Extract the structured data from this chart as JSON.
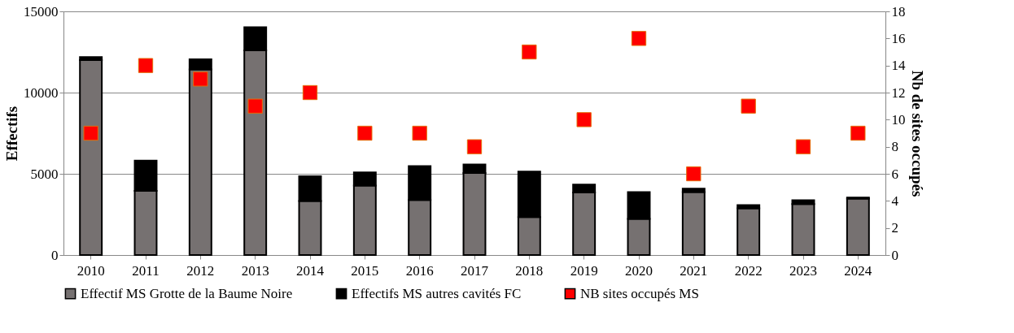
{
  "chart_data": {
    "type": "bar",
    "stacked": true,
    "ylabel": "Effectifs",
    "y2label": "Nb de sites occupés",
    "categories": [
      "2010",
      "2011",
      "2012",
      "2013",
      "2014",
      "2015",
      "2016",
      "2017",
      "2018",
      "2019",
      "2020",
      "2021",
      "2022",
      "2023",
      "2024"
    ],
    "series": [
      {
        "name": "Effectif MS Grotte de la Baume Noire",
        "color": "#767171",
        "values": [
          12000,
          3950,
          11420,
          12600,
          3330,
          4280,
          3390,
          5050,
          2340,
          3850,
          2230,
          3870,
          2870,
          3140,
          3470
        ]
      },
      {
        "name": "Effectifs MS autres cavités FC",
        "color": "#000000",
        "values": [
          190,
          1860,
          630,
          1420,
          1520,
          810,
          2080,
          520,
          2800,
          490,
          1640,
          220,
          200,
          240,
          70
        ]
      },
      {
        "name": "NB sites occupés MS",
        "color": "#ff0000",
        "type": "scatter",
        "axis": "y2",
        "marker": "square",
        "values": [
          9,
          14,
          13,
          11,
          12,
          9,
          9,
          8,
          15,
          10,
          16,
          6,
          11,
          8,
          9
        ]
      }
    ],
    "ylim": [
      0,
      15000
    ],
    "yticks": [
      0,
      5000,
      10000,
      15000
    ],
    "y2lim": [
      0,
      18
    ],
    "y2ticks": [
      0,
      2,
      4,
      6,
      8,
      10,
      12,
      14,
      16,
      18
    ],
    "grid": "y",
    "legend": "bottom"
  }
}
